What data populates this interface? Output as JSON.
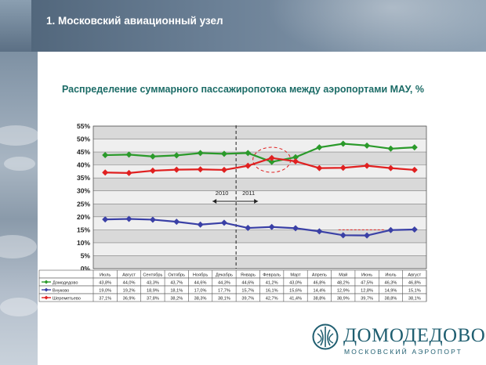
{
  "header": {
    "title": "1. Московский авиационный узел"
  },
  "chart_data": {
    "type": "line",
    "title": "Распределение суммарного пассажиропотока между аэропортами МАУ, %",
    "categories": [
      "Июль",
      "Август",
      "Сентябрь",
      "Октябрь",
      "Ноябрь",
      "Декабрь",
      "Январь",
      "Февраль",
      "Март",
      "Апрель",
      "Май",
      "Июнь",
      "Июль",
      "Август"
    ],
    "ylim": [
      0,
      55
    ],
    "yticks": [
      "0%",
      "5%",
      "10%",
      "15%",
      "20%",
      "25%",
      "30%",
      "35%",
      "40%",
      "45%",
      "50%",
      "55%"
    ],
    "series": [
      {
        "name": "Домодедово",
        "color": "#2a9a2a",
        "values": [
          43.8,
          44.0,
          43.3,
          43.7,
          44.6,
          44.3,
          44.6,
          41.2,
          43.0,
          46.8,
          48.2,
          47.5,
          46.3,
          46.8
        ],
        "labels": [
          "43,8%",
          "44,0%",
          "43,3%",
          "43,7%",
          "44,6%",
          "44,3%",
          "44,6%",
          "41,2%",
          "43,0%",
          "46,8%",
          "48,2%",
          "47,5%",
          "46,3%",
          "46,8%"
        ]
      },
      {
        "name": "Внуково",
        "color": "#3a40a6",
        "values": [
          19.0,
          19.2,
          18.9,
          18.1,
          17.0,
          17.7,
          15.7,
          16.1,
          15.6,
          14.4,
          12.9,
          12.8,
          14.9,
          15.1
        ],
        "labels": [
          "19,0%",
          "19,2%",
          "18,9%",
          "18,1%",
          "17,0%",
          "17,7%",
          "15,7%",
          "16,1%",
          "15,6%",
          "14,4%",
          "12,9%",
          "12,8%",
          "14,9%",
          "15,1%"
        ]
      },
      {
        "name": "Шереметьево",
        "color": "#e02020",
        "values": [
          37.1,
          36.9,
          37.8,
          38.2,
          38.3,
          38.1,
          39.7,
          42.7,
          41.4,
          38.8,
          38.9,
          39.7,
          38.8,
          38.1
        ],
        "labels": [
          "37,1%",
          "36,9%",
          "37,8%",
          "38,2%",
          "38,3%",
          "38,1%",
          "39,7%",
          "42,7%",
          "41,4%",
          "38,8%",
          "38,9%",
          "39,7%",
          "38,8%",
          "38,1%"
        ]
      }
    ],
    "annotations": {
      "year_left": "2010",
      "year_right": "2011"
    },
    "grid": true,
    "legend": "data-table-below"
  },
  "logo": {
    "name": "ДОМОДЕДОВО",
    "subtitle": "МОСКОВСКИЙ АЭРОПОРТ"
  }
}
